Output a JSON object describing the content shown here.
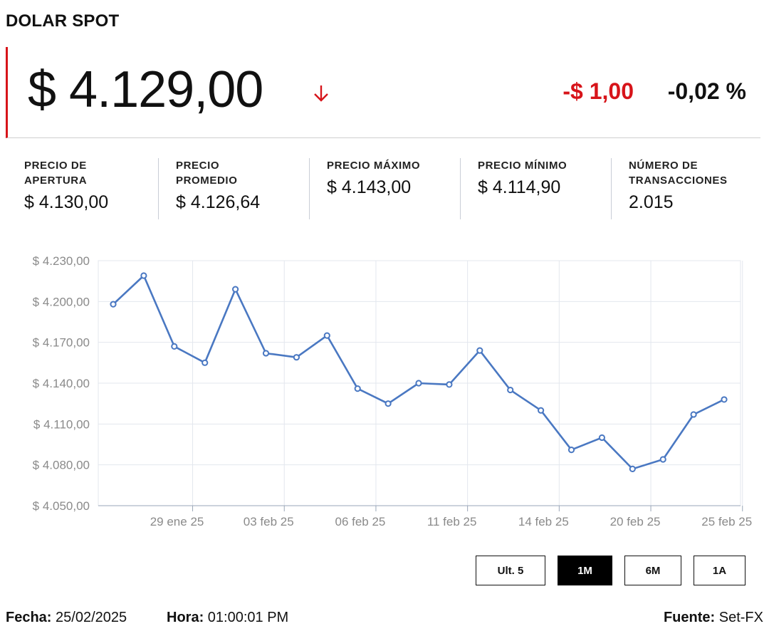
{
  "header": {
    "title": "DOLAR SPOT"
  },
  "quote": {
    "price": "$ 4.129,00",
    "change": "-$ 1,00",
    "change_pct": "-0,02 %",
    "direction_icon": "arrow-down-icon",
    "down_color": "#d7141a"
  },
  "stats": [
    {
      "label_line1": "PRECIO DE",
      "label_line2": "APERTURA",
      "value": "$ 4.130,00"
    },
    {
      "label_line1": "PRECIO",
      "label_line2": "PROMEDIO",
      "value": "$ 4.126,64"
    },
    {
      "label_line1": "PRECIO MÁXIMO",
      "label_line2": "",
      "value": "$ 4.143,00"
    },
    {
      "label_line1": "PRECIO MÍNIMO",
      "label_line2": "",
      "value": "$ 4.114,90"
    },
    {
      "label_line1": "NÚMERO DE",
      "label_line2": "TRANSACCIONES",
      "value": "2.015"
    }
  ],
  "chart_data": {
    "type": "line",
    "title": "",
    "xlabel": "",
    "ylabel": "",
    "ylim": [
      4050,
      4230
    ],
    "y_ticks": [
      4050,
      4080,
      4110,
      4140,
      4170,
      4200,
      4230
    ],
    "y_tick_labels": [
      "$ 4.050,00",
      "$ 4.080,00",
      "$ 4.110,00",
      "$ 4.140,00",
      "$ 4.170,00",
      "$ 4.200,00",
      "$ 4.230,00"
    ],
    "x_tick_labels": [
      "29 ene 25",
      "03 feb 25",
      "06 feb 25",
      "11 feb 25",
      "14 feb 25",
      "20 feb 25",
      "25 feb 25"
    ],
    "x_tick_at_index": [
      2.6,
      5.6,
      8.6,
      11.6,
      14.6,
      17.6,
      20.6
    ],
    "grid": true,
    "line_color": "#4a78c2",
    "series": [
      {
        "values": [
          4198,
          4219,
          4167,
          4155,
          4209,
          4162,
          4159,
          4175,
          4136,
          4125,
          4140,
          4139,
          4164,
          4135,
          4120,
          4091,
          4100,
          4077,
          4084,
          4117,
          4128
        ]
      }
    ]
  },
  "range_buttons": [
    {
      "label": "Ult. 5",
      "active": false
    },
    {
      "label": "1M",
      "active": true
    },
    {
      "label": "6M",
      "active": false
    },
    {
      "label": "1A",
      "active": false
    }
  ],
  "footer": {
    "fecha_label": "Fecha:",
    "fecha_value": "25/02/2025",
    "hora_label": "Hora:",
    "hora_value": "01:00:01 PM",
    "fuente_label": "Fuente:",
    "fuente_value": "Set-FX"
  }
}
